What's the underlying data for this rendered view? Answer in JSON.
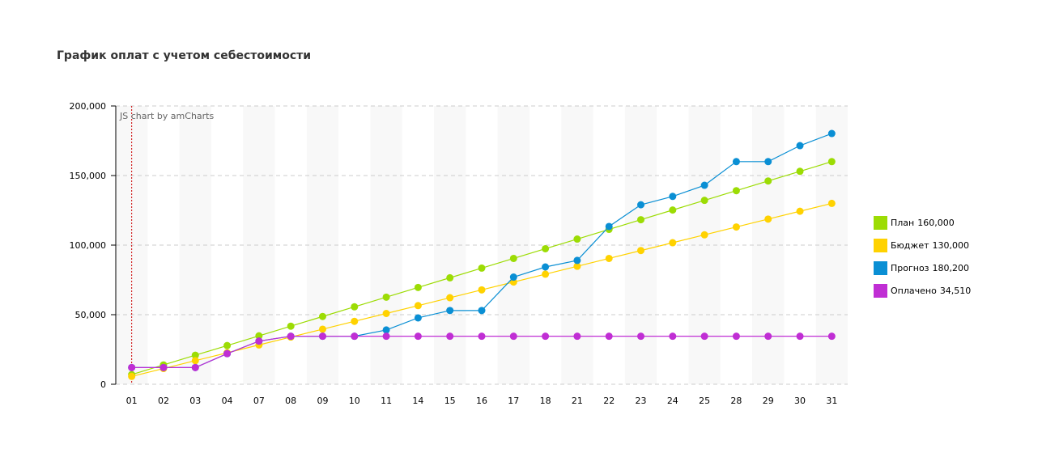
{
  "title": "График оплат с учетом себестоимости",
  "credit": "JS chart by amCharts",
  "chart_data": {
    "type": "line",
    "title": "График оплат с учетом себестоимости",
    "categories": [
      "01",
      "02",
      "03",
      "04",
      "07",
      "08",
      "09",
      "10",
      "11",
      "14",
      "15",
      "16",
      "17",
      "18",
      "21",
      "22",
      "23",
      "24",
      "25",
      "28",
      "29",
      "30",
      "31"
    ],
    "ylim": [
      0,
      200000
    ],
    "yticks": [
      "0",
      "50,000",
      "100,000",
      "150,000",
      "200,000"
    ],
    "ytick_values": [
      0,
      50000,
      100000,
      150000,
      200000
    ],
    "grid": true,
    "legend_position": "right",
    "series": [
      {
        "name": "План",
        "total": "160,000",
        "color": "#9cdc04",
        "values": [
          6957,
          13913,
          20870,
          27826,
          34783,
          41739,
          48696,
          55652,
          62609,
          69565,
          76522,
          83478,
          90435,
          97391,
          104348,
          111304,
          118261,
          125217,
          132174,
          139130,
          146087,
          153043,
          160000
        ]
      },
      {
        "name": "Бюджет",
        "total": "130,000",
        "color": "#ffd200",
        "values": [
          5652,
          11304,
          16957,
          22609,
          28261,
          33913,
          39565,
          45217,
          50870,
          56522,
          62174,
          67826,
          73478,
          79130,
          84783,
          90435,
          96087,
          101739,
          107391,
          113043,
          118696,
          124348,
          130000
        ]
      },
      {
        "name": "Прогноз",
        "total": "180,200",
        "color": "#0a8fd4",
        "values": [
          12000,
          12000,
          12000,
          22000,
          31000,
          34510,
          34510,
          34510,
          39000,
          47700,
          53000,
          53000,
          77000,
          84300,
          89000,
          113400,
          129000,
          135000,
          143000,
          160000,
          160000,
          171500,
          180200
        ]
      },
      {
        "name": "Оплачено",
        "total": "34,510",
        "color": "#c02ed4",
        "values": [
          12000,
          12000,
          12000,
          22000,
          31000,
          34510,
          34510,
          34510,
          34510,
          34510,
          34510,
          34510,
          34510,
          34510,
          34510,
          34510,
          34510,
          34510,
          34510,
          34510,
          34510,
          34510,
          34510
        ]
      }
    ]
  }
}
